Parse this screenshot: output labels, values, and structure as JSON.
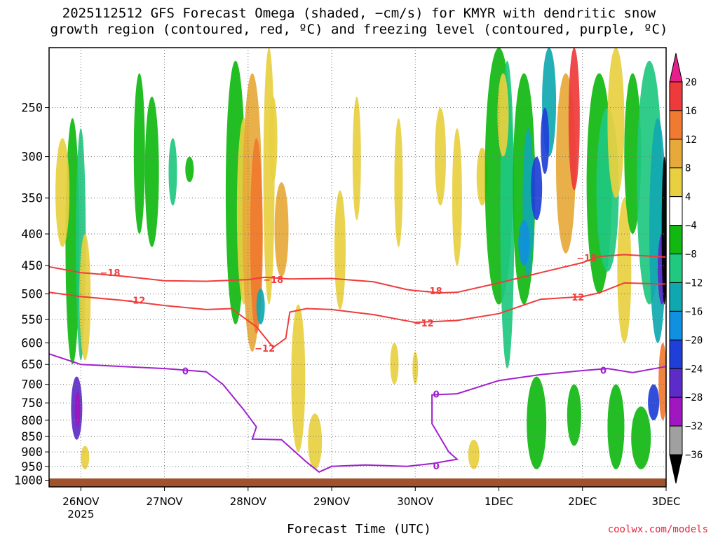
{
  "title_line1": "2025112512 GFS Forecast Omega (shaded, −cm/s) for KMYR with dendritic snow",
  "title_line2": "growth region (contoured, red, ºC) and freezing level (contoured, purple, ºC)",
  "credit": "coolwx.com/models",
  "chart_data": {
    "type": "heatmap",
    "xlabel": "Forecast Time (UTC)",
    "ylabel": "",
    "x_ticks": [
      {
        "label": "26NOV",
        "sub": "2025",
        "value": 1
      },
      {
        "label": "27NOV",
        "sub": "",
        "value": 2
      },
      {
        "label": "28NOV",
        "sub": "",
        "value": 3
      },
      {
        "label": "29NOV",
        "sub": "",
        "value": 4
      },
      {
        "label": "30NOV",
        "sub": "",
        "value": 5
      },
      {
        "label": "1DEC",
        "sub": "",
        "value": 6
      },
      {
        "label": "2DEC",
        "sub": "",
        "value": 7
      },
      {
        "label": "3DEC",
        "sub": "",
        "value": 8
      }
    ],
    "xlim": [
      0.62,
      8.0
    ],
    "y_scale": "log",
    "y_ticks": [
      250,
      300,
      350,
      400,
      450,
      500,
      550,
      600,
      650,
      700,
      750,
      800,
      850,
      900,
      950,
      1000
    ],
    "ylim": [
      200,
      1025
    ],
    "grid": true,
    "colorbar": {
      "labels": [
        "20",
        "16",
        "12",
        "8",
        "4",
        "−4",
        "−8",
        "−12",
        "−16",
        "−20",
        "−24",
        "−28",
        "−32",
        "−36"
      ],
      "bounds": [
        24,
        20,
        16,
        12,
        8,
        4,
        -4,
        -8,
        -12,
        -16,
        -20,
        -24,
        -28,
        -32,
        -36,
        -40
      ],
      "colors": [
        "#e81e8c",
        "#ee3a3a",
        "#ef7a30",
        "#e7a93a",
        "#e8d040",
        "#ffffff",
        "#10b810",
        "#20c880",
        "#10a8b0",
        "#1090e0",
        "#1f3fd8",
        "#5c2bc8",
        "#a016c0",
        "#a0a0a0",
        "#000000"
      ]
    },
    "contours": [
      {
        "name": "",
        "color": "#f03c3c",
        "label": "−18",
        "points": [
          [
            0.62,
            452
          ],
          [
            1.0,
            462
          ],
          [
            1.5,
            468
          ],
          [
            2.0,
            476
          ],
          [
            2.5,
            477
          ],
          [
            3.0,
            474
          ],
          [
            3.2,
            470
          ],
          [
            3.5,
            473
          ],
          [
            4.0,
            472
          ],
          [
            4.5,
            478
          ],
          [
            4.9,
            492
          ],
          [
            5.0,
            494
          ],
          [
            5.3,
            498
          ],
          [
            5.5,
            497
          ],
          [
            6.0,
            480
          ],
          [
            6.5,
            462
          ],
          [
            7.0,
            445
          ],
          [
            7.2,
            435
          ],
          [
            7.5,
            432
          ],
          [
            8.0,
            436
          ]
        ],
        "label_at": [
          [
            1.35,
            462
          ],
          [
            3.3,
            474
          ],
          [
            5.2,
            494
          ],
          [
            7.05,
            437
          ]
        ]
      },
      {
        "name": "",
        "color": "#f03c3c",
        "label": "−12",
        "points": [
          [
            0.62,
            497
          ],
          [
            1.0,
            505
          ],
          [
            1.5,
            512
          ],
          [
            2.0,
            522
          ],
          [
            2.5,
            530
          ],
          [
            2.8,
            528
          ],
          [
            3.1,
            565
          ],
          [
            3.3,
            610
          ],
          [
            3.45,
            590
          ],
          [
            3.5,
            535
          ],
          [
            3.7,
            528
          ],
          [
            4.0,
            530
          ],
          [
            4.5,
            540
          ],
          [
            5.0,
            556
          ],
          [
            5.5,
            552
          ],
          [
            6.0,
            538
          ],
          [
            6.5,
            510
          ],
          [
            7.0,
            505
          ],
          [
            7.2,
            498
          ],
          [
            7.5,
            480
          ],
          [
            8.0,
            482
          ]
        ],
        "label_at": [
          [
            1.65,
            512
          ],
          [
            3.2,
            612
          ],
          [
            5.1,
            557
          ],
          [
            6.9,
            506
          ]
        ]
      },
      {
        "name": "",
        "color": "#a020d0",
        "label": "0",
        "points": [
          [
            0.62,
            625
          ],
          [
            1.0,
            650
          ],
          [
            1.5,
            655
          ],
          [
            2.0,
            660
          ],
          [
            2.5,
            668
          ],
          [
            2.7,
            700
          ],
          [
            2.95,
            770
          ],
          [
            3.1,
            820
          ],
          [
            3.05,
            858
          ],
          [
            3.4,
            860
          ],
          [
            3.7,
            935
          ],
          [
            3.85,
            970
          ],
          [
            4.0,
            950
          ],
          [
            4.4,
            945
          ],
          [
            4.9,
            950
          ],
          [
            5.2,
            940
          ],
          [
            5.5,
            925
          ],
          [
            5.4,
            900
          ],
          [
            5.2,
            810
          ],
          [
            5.2,
            728
          ],
          [
            5.5,
            725
          ],
          [
            6.0,
            690
          ],
          [
            6.5,
            675
          ],
          [
            7.0,
            665
          ],
          [
            7.3,
            660
          ],
          [
            7.6,
            670
          ],
          [
            8.0,
            655
          ]
        ],
        "label_at": [
          [
            2.25,
            666
          ],
          [
            5.25,
            948
          ],
          [
            5.25,
            726
          ],
          [
            7.25,
            664
          ]
        ]
      }
    ]
  }
}
